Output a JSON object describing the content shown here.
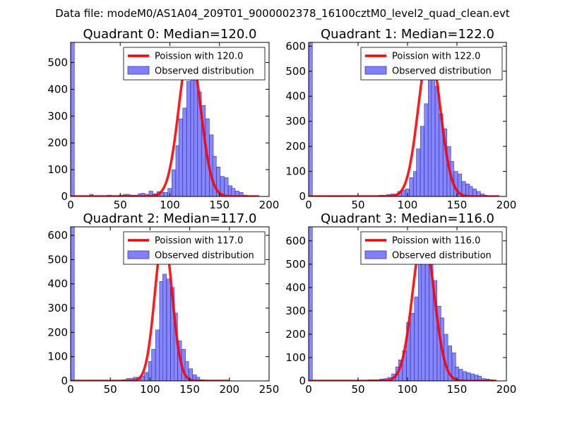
{
  "suptitle": "Data file: modeM0/AS1A04_209T01_9000002378_16100cztM0_level2_quad_clean.evt",
  "colors": {
    "hist_fill": "#8080ff",
    "hist_edge": "#3a3aa8",
    "fit": "#ff0000"
  },
  "chart_data": [
    {
      "type": "bar",
      "title": "Quadrant 0: Median=120.0",
      "median": 120.0,
      "xlim": [
        0,
        200
      ],
      "ylim": [
        0,
        575
      ],
      "xticks": [
        0,
        50,
        100,
        150,
        200
      ],
      "yticks": [
        0,
        100,
        200,
        300,
        400,
        500
      ],
      "legend": {
        "placement": "top-right",
        "fit_label": "Poission with 120.0",
        "hist_label": "Observed distribution"
      },
      "bin_width": 3.8,
      "bins": [
        [
          0,
          575
        ],
        [
          19,
          8
        ],
        [
          37,
          5
        ],
        [
          49,
          5
        ],
        [
          53,
          8
        ],
        [
          56,
          8
        ],
        [
          60,
          5
        ],
        [
          64,
          5
        ],
        [
          68,
          10
        ],
        [
          71,
          12
        ],
        [
          75,
          8
        ],
        [
          79,
          20
        ],
        [
          83,
          10
        ],
        [
          87,
          18
        ],
        [
          90,
          15
        ],
        [
          94,
          15
        ],
        [
          98,
          30
        ],
        [
          102,
          100
        ],
        [
          106,
          190
        ],
        [
          109,
          290
        ],
        [
          113,
          330
        ],
        [
          117,
          430
        ],
        [
          121,
          480
        ],
        [
          124,
          510
        ],
        [
          128,
          390
        ],
        [
          132,
          340
        ],
        [
          136,
          290
        ],
        [
          140,
          230
        ],
        [
          143,
          150
        ],
        [
          147,
          110
        ],
        [
          151,
          75
        ],
        [
          155,
          70
        ],
        [
          159,
          40
        ],
        [
          162,
          30
        ],
        [
          166,
          20
        ],
        [
          170,
          15
        ],
        [
          174,
          5
        ],
        [
          177,
          3
        ],
        [
          181,
          2
        ]
      ],
      "fit": {
        "mean": 120.0,
        "peak": 550,
        "x_range": [
          0,
          190
        ]
      }
    },
    {
      "type": "bar",
      "title": "Quadrant 1: Median=122.0",
      "median": 122.0,
      "xlim": [
        0,
        200
      ],
      "ylim": [
        0,
        615
      ],
      "xticks": [
        0,
        50,
        100,
        150,
        200
      ],
      "yticks": [
        0,
        100,
        200,
        300,
        400,
        500,
        600
      ],
      "legend": {
        "placement": "top-right",
        "fit_label": "Poission with 122.0",
        "hist_label": "Observed distribution"
      },
      "bin_width": 3.8,
      "bins": [
        [
          0,
          615
        ],
        [
          71,
          5
        ],
        [
          75,
          5
        ],
        [
          79,
          8
        ],
        [
          83,
          10
        ],
        [
          87,
          8
        ],
        [
          90,
          20
        ],
        [
          94,
          25
        ],
        [
          98,
          30
        ],
        [
          102,
          75
        ],
        [
          106,
          100
        ],
        [
          109,
          190
        ],
        [
          113,
          280
        ],
        [
          117,
          370
        ],
        [
          121,
          520
        ],
        [
          124,
          570
        ],
        [
          128,
          440
        ],
        [
          132,
          330
        ],
        [
          136,
          270
        ],
        [
          140,
          200
        ],
        [
          143,
          140
        ],
        [
          147,
          100
        ],
        [
          151,
          90
        ],
        [
          155,
          60
        ],
        [
          159,
          50
        ],
        [
          162,
          40
        ],
        [
          166,
          30
        ],
        [
          170,
          20
        ],
        [
          174,
          10
        ],
        [
          177,
          5
        ]
      ],
      "fit": {
        "mean": 122.0,
        "peak": 590,
        "x_range": [
          0,
          193
        ]
      }
    },
    {
      "type": "bar",
      "title": "Quadrant 2: Median=117.0",
      "median": 117.0,
      "xlim": [
        0,
        250
      ],
      "ylim": [
        0,
        635
      ],
      "xticks": [
        0,
        50,
        100,
        150,
        200,
        250
      ],
      "yticks": [
        0,
        100,
        200,
        300,
        400,
        500,
        600
      ],
      "legend": {
        "placement": "top-right",
        "fit_label": "Poission with 117.0",
        "hist_label": "Observed distribution"
      },
      "bin_width": 4.7,
      "bins": [
        [
          0,
          635
        ],
        [
          65,
          5
        ],
        [
          70,
          10
        ],
        [
          74,
          10
        ],
        [
          79,
          15
        ],
        [
          84,
          15
        ],
        [
          88,
          20
        ],
        [
          93,
          35
        ],
        [
          98,
          80
        ],
        [
          102,
          130
        ],
        [
          107,
          210
        ],
        [
          112,
          410
        ],
        [
          116,
          440
        ],
        [
          121,
          420
        ],
        [
          126,
          385
        ],
        [
          130,
          280
        ],
        [
          135,
          165
        ],
        [
          140,
          130
        ],
        [
          144,
          80
        ],
        [
          149,
          50
        ],
        [
          154,
          25
        ],
        [
          158,
          15
        ],
        [
          163,
          5
        ],
        [
          168,
          3
        ]
      ],
      "fit": {
        "mean": 117.0,
        "peak": 600,
        "x_range": [
          0,
          200
        ]
      }
    },
    {
      "type": "bar",
      "title": "Quadrant 3: Median=116.0",
      "median": 116.0,
      "xlim": [
        0,
        200
      ],
      "ylim": [
        0,
        660
      ],
      "xticks": [
        0,
        50,
        100,
        150,
        200
      ],
      "yticks": [
        0,
        100,
        200,
        300,
        400,
        500,
        600
      ],
      "legend": {
        "placement": "top-right",
        "fit_label": "Poission with 116.0",
        "hist_label": "Observed distribution"
      },
      "bin_width": 3.8,
      "bins": [
        [
          0,
          660
        ],
        [
          60,
          5
        ],
        [
          64,
          5
        ],
        [
          68,
          5
        ],
        [
          72,
          8
        ],
        [
          76,
          10
        ],
        [
          80,
          15
        ],
        [
          84,
          30
        ],
        [
          88,
          60
        ],
        [
          91,
          90
        ],
        [
          95,
          130
        ],
        [
          99,
          250
        ],
        [
          103,
          290
        ],
        [
          107,
          360
        ],
        [
          111,
          500
        ],
        [
          114,
          560
        ],
        [
          118,
          560
        ],
        [
          122,
          540
        ],
        [
          126,
          430
        ],
        [
          130,
          320
        ],
        [
          133,
          270
        ],
        [
          137,
          200
        ],
        [
          141,
          150
        ],
        [
          145,
          120
        ],
        [
          148,
          60
        ],
        [
          152,
          50
        ],
        [
          156,
          40
        ],
        [
          160,
          35
        ],
        [
          164,
          30
        ],
        [
          168,
          25
        ],
        [
          171,
          20
        ],
        [
          175,
          10
        ],
        [
          179,
          8
        ],
        [
          183,
          5
        ]
      ],
      "fit": {
        "mean": 116.0,
        "peak": 630,
        "x_range": [
          0,
          190
        ]
      }
    }
  ]
}
